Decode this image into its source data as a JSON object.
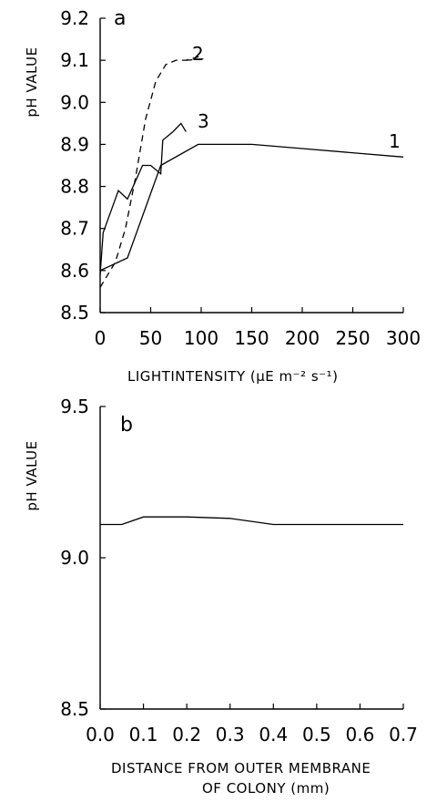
{
  "chart_data": [
    {
      "type": "line",
      "panel_label": "a",
      "xlabel": "LIGHTINTENSITY (μE m⁻² s⁻¹)",
      "ylabel": "pH VALUE",
      "xlim": [
        0,
        300
      ],
      "ylim": [
        8.5,
        9.2
      ],
      "x_ticks": [
        "0",
        "50",
        "100",
        "150",
        "200",
        "250",
        "300"
      ],
      "y_ticks": [
        "8.5",
        "8.6",
        "8.7",
        "8.8",
        "8.9",
        "9.0",
        "9.1",
        "9.2"
      ],
      "grid": false,
      "series": [
        {
          "name": "1",
          "style": "solid",
          "x": [
            0,
            27,
            60,
            97,
            150,
            200,
            300
          ],
          "y": [
            8.6,
            8.63,
            8.85,
            8.9,
            8.9,
            8.89,
            8.87
          ]
        },
        {
          "name": "2",
          "style": "dashed",
          "x": [
            0,
            15,
            25,
            35,
            45,
            55,
            65,
            75,
            85,
            100
          ],
          "y": [
            8.56,
            8.62,
            8.7,
            8.82,
            8.96,
            9.05,
            9.09,
            9.1,
            9.1,
            9.11
          ]
        },
        {
          "name": "3",
          "style": "solid",
          "x": [
            0,
            3,
            18,
            27,
            42,
            50,
            60,
            62,
            72,
            80,
            85
          ],
          "y": [
            8.59,
            8.69,
            8.79,
            8.77,
            8.85,
            8.85,
            8.83,
            8.91,
            8.93,
            8.95,
            8.93
          ]
        }
      ]
    },
    {
      "type": "line",
      "panel_label": "b",
      "xlabel": "DISTANCE FROM OUTER MEMBRANE OF COLONY (mm)",
      "xlabel_lines": [
        "DISTANCE FROM OUTER MEMBRANE",
        "OF COLONY (mm)"
      ],
      "ylabel": "pH VALUE",
      "xlim": [
        0.0,
        0.7
      ],
      "ylim": [
        8.5,
        9.5
      ],
      "x_ticks": [
        "0.0",
        "0.1",
        "0.2",
        "0.3",
        "0.4",
        "0.5",
        "0.6",
        "0.7"
      ],
      "y_ticks": [
        "8.5",
        "9.0",
        "9.5"
      ],
      "grid": false,
      "series": [
        {
          "name": "",
          "style": "solid",
          "x": [
            0.0,
            0.05,
            0.1,
            0.2,
            0.3,
            0.4,
            0.5,
            0.6,
            0.7
          ],
          "y": [
            9.11,
            9.11,
            9.135,
            9.135,
            9.13,
            9.11,
            9.11,
            9.11,
            9.11
          ]
        }
      ]
    }
  ]
}
